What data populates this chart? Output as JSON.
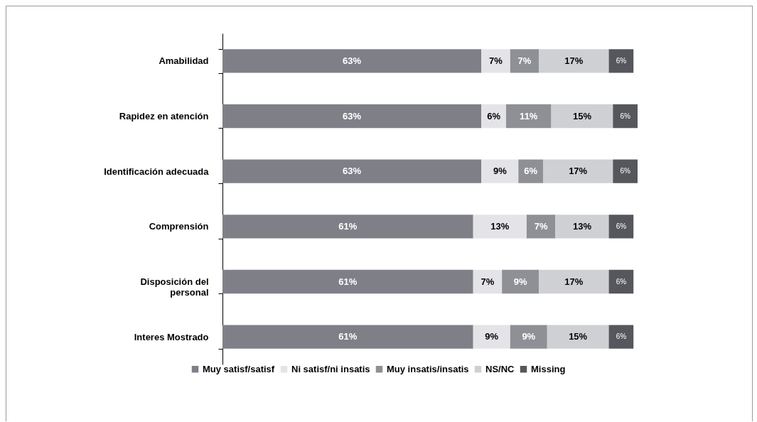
{
  "chart_data": {
    "type": "bar",
    "orientation": "horizontal",
    "stacked": true,
    "legend": "bottom",
    "grid": false,
    "tick_labels": "y",
    "categories": [
      "Amabilidad",
      "Rapidez en atención",
      "Identificación adecuada",
      "Comprensión",
      "Disposición del personal",
      "Interes Mostrado"
    ],
    "series": [
      {
        "name": "Muy satisf/satisf",
        "color": "#7f8087",
        "values": [
          63,
          63,
          63,
          61,
          61,
          61
        ],
        "value_labels": [
          "63%",
          "63%",
          "63%",
          "61%",
          "61%",
          "61%"
        ]
      },
      {
        "name": "Ni satisf/ni insatis",
        "color": "#e4e4e8",
        "values": [
          7,
          6,
          9,
          13,
          7,
          9
        ],
        "value_labels": [
          "7%",
          "6%",
          "9%",
          "13%",
          "7%",
          "9%"
        ]
      },
      {
        "name": "Muy insatis/insatis",
        "color": "#8e9096",
        "values": [
          7,
          11,
          6,
          7,
          9,
          9
        ],
        "value_labels": [
          "7%",
          "11%",
          "6%",
          "7%",
          "9%",
          "9%"
        ]
      },
      {
        "name": "NS/NC",
        "color": "#cfd0d3",
        "values": [
          17,
          15,
          17,
          13,
          17,
          15
        ],
        "value_labels": [
          "17%",
          "15%",
          "17%",
          "13%",
          "17%",
          "15%"
        ]
      },
      {
        "name": "Missing",
        "color": "#55575c",
        "values": [
          6,
          6,
          6,
          6,
          6,
          6
        ],
        "value_labels": [
          "6%",
          "6%",
          "6%",
          "6%",
          "6%",
          "6%"
        ]
      }
    ]
  }
}
